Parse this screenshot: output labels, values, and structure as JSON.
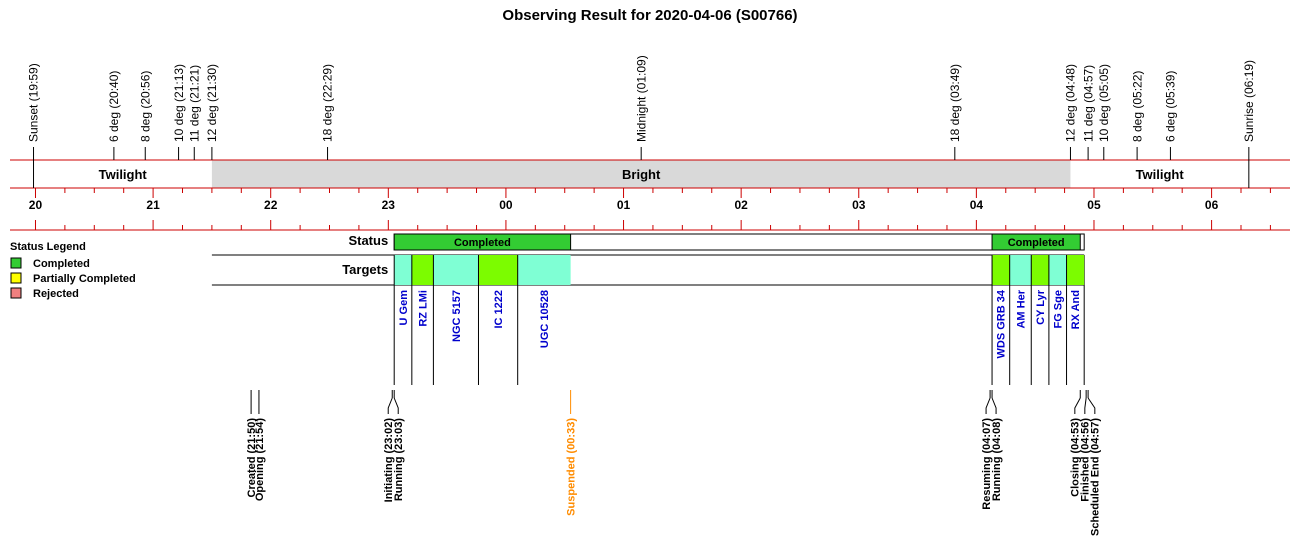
{
  "chart_data": {
    "type": "timeline",
    "title": "Observing Result for 2020-04-06 (S00766)",
    "time_axis": {
      "start": "19:47",
      "end": "06:40",
      "tick_labels": [
        "20",
        "21",
        "22",
        "23",
        "00",
        "01",
        "02",
        "03",
        "04",
        "05",
        "06"
      ]
    },
    "sun_events": [
      {
        "label": "Sunset (19:59)",
        "time": "19:59"
      },
      {
        "label": "6 deg (20:40)",
        "time": "20:40"
      },
      {
        "label": "8 deg (20:56)",
        "time": "20:56"
      },
      {
        "label": "10 deg (21:13)",
        "time": "21:13"
      },
      {
        "label": "11 deg (21:21)",
        "time": "21:21"
      },
      {
        "label": "12 deg (21:30)",
        "time": "21:30"
      },
      {
        "label": "18 deg (22:29)",
        "time": "22:29"
      },
      {
        "label": "Midnight (01:09)",
        "time": "01:09"
      },
      {
        "label": "18 deg (03:49)",
        "time": "03:49"
      },
      {
        "label": "12 deg (04:48)",
        "time": "04:48"
      },
      {
        "label": "11 deg (04:57)",
        "time": "04:57"
      },
      {
        "label": "10 deg (05:05)",
        "time": "05:05"
      },
      {
        "label": "8 deg (05:22)",
        "time": "05:22"
      },
      {
        "label": "6 deg (05:39)",
        "time": "05:39"
      },
      {
        "label": "Sunrise (06:19)",
        "time": "06:19"
      }
    ],
    "sky_bands": [
      {
        "label": "Twilight",
        "start": "19:59",
        "end": "21:30",
        "color": "#ffffff"
      },
      {
        "label": "Bright",
        "start": "21:30",
        "end": "04:48",
        "color": "#d9d9d9"
      },
      {
        "label": "Twilight",
        "start": "04:48",
        "end": "06:19",
        "color": "#ffffff"
      }
    ],
    "legend": {
      "title": "Status Legend",
      "items": [
        {
          "label": "Completed",
          "color": "#33cc33"
        },
        {
          "label": "Partially Completed",
          "color": "#ffff00"
        },
        {
          "label": "Rejected",
          "color": "#f08080"
        }
      ]
    },
    "status_row": {
      "label": "Status",
      "blocks": [
        {
          "label": "Completed",
          "start": "23:03",
          "end": "00:33",
          "color": "#33cc33"
        },
        {
          "label": "Completed",
          "start": "04:08",
          "end": "04:53",
          "color": "#33cc33"
        }
      ]
    },
    "targets_row": {
      "label": "Targets",
      "row_start": "21:30",
      "targets": [
        {
          "name": "U Gem",
          "start": "23:03",
          "end": "23:12",
          "color": "#7fffd4"
        },
        {
          "name": "RZ LMi",
          "start": "23:12",
          "end": "23:23",
          "color": "#7cfc00"
        },
        {
          "name": "NGC 5157",
          "start": "23:23",
          "end": "23:46",
          "color": "#7fffd4"
        },
        {
          "name": "IC 1222",
          "start": "23:46",
          "end": "00:06",
          "color": "#7cfc00"
        },
        {
          "name": "UGC 10528",
          "start": "00:06",
          "end": "00:33",
          "color": "#7fffd4"
        },
        {
          "name": "WDS GRB 34",
          "start": "04:08",
          "end": "04:17",
          "color": "#7cfc00"
        },
        {
          "name": "AM Her",
          "start": "04:17",
          "end": "04:28",
          "color": "#7fffd4"
        },
        {
          "name": "CY Lyr",
          "start": "04:28",
          "end": "04:37",
          "color": "#7cfc00"
        },
        {
          "name": "FG Sge",
          "start": "04:37",
          "end": "04:46",
          "color": "#7fffd4"
        },
        {
          "name": "RX And",
          "start": "04:46",
          "end": "04:55",
          "color": "#7cfc00"
        }
      ]
    },
    "log_events": [
      {
        "label": "Created (21:50)",
        "time": "21:50",
        "color": "#000000"
      },
      {
        "label": "Opening (21:54)",
        "time": "21:54",
        "color": "#000000"
      },
      {
        "label": "Initiating (23:02)",
        "time": "23:02",
        "color": "#000000"
      },
      {
        "label": "Running (23:03)",
        "time": "23:03",
        "color": "#000000"
      },
      {
        "label": "Suspended (00:33)",
        "time": "00:33",
        "color": "#ff8c00"
      },
      {
        "label": "Resuming (04:07)",
        "time": "04:07",
        "color": "#000000"
      },
      {
        "label": "Running (04:08)",
        "time": "04:08",
        "color": "#000000"
      },
      {
        "label": "Closing (04:53)",
        "time": "04:53",
        "color": "#000000"
      },
      {
        "label": "Finished (04:56)",
        "time": "04:56",
        "color": "#000000"
      },
      {
        "label": "Scheduled End (04:57)",
        "time": "04:57",
        "color": "#000000"
      }
    ],
    "colors": {
      "axis_lines": "#cc0000",
      "row_border": "#000000"
    }
  }
}
